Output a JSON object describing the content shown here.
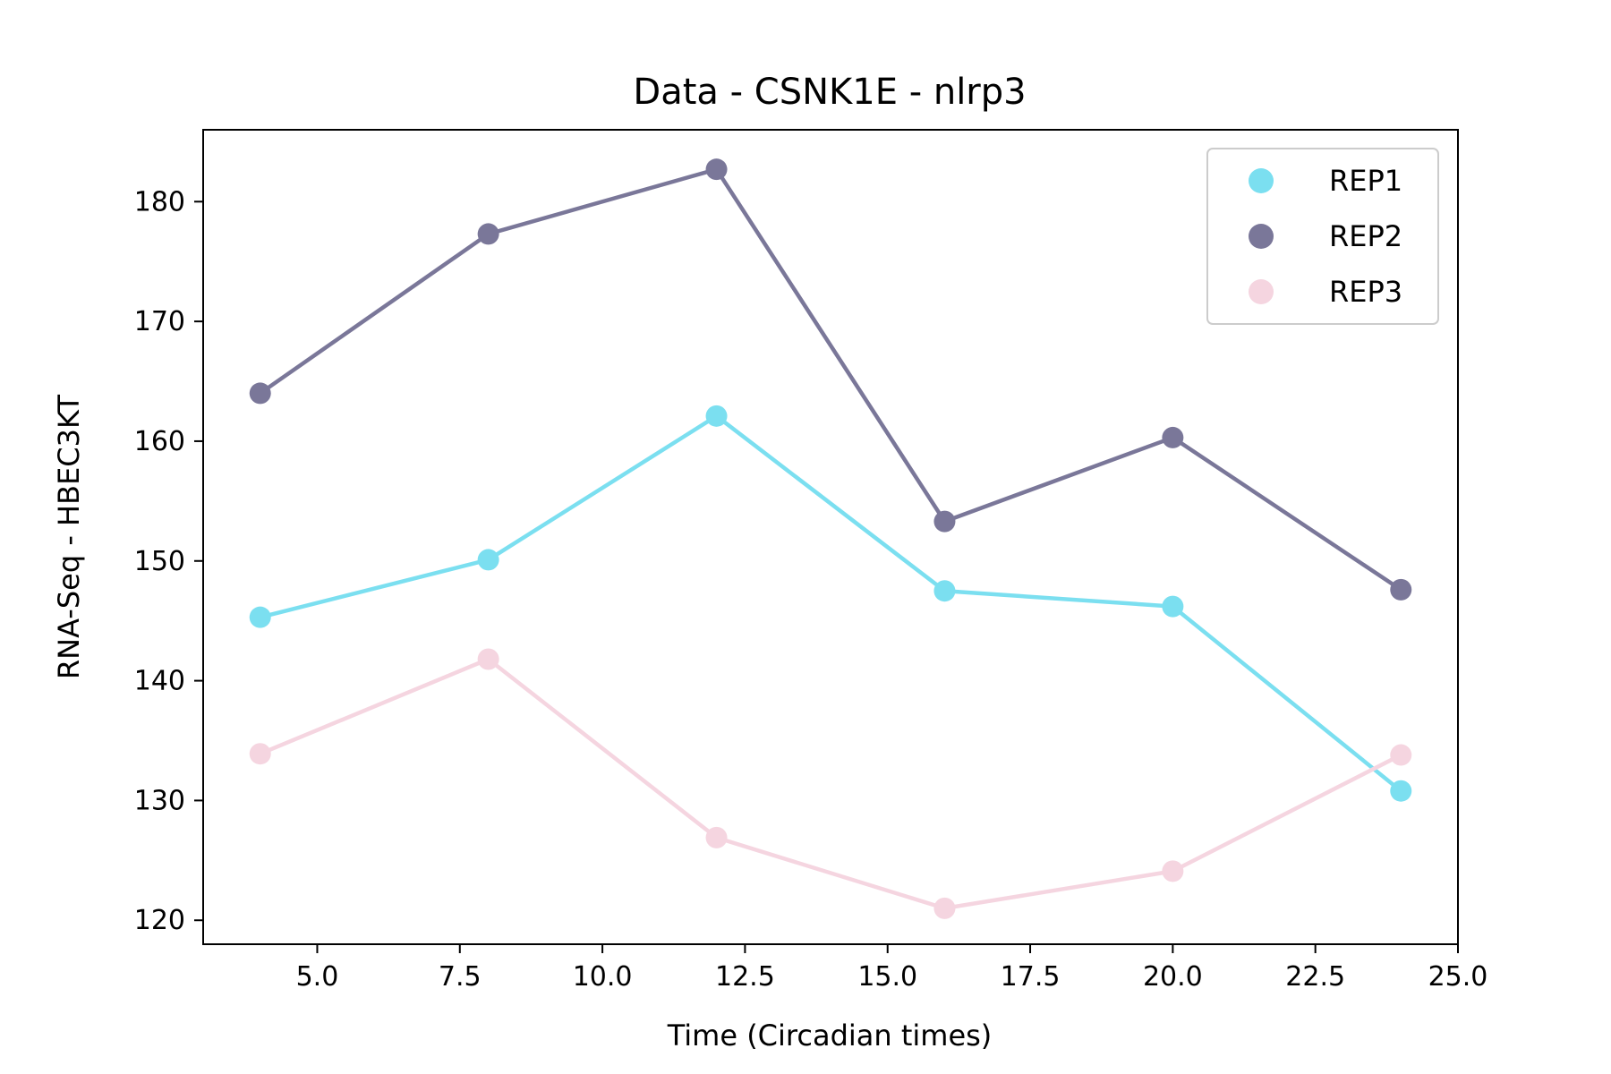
{
  "chart_data": {
    "type": "line",
    "title": "Data - CSNK1E - nlrp3",
    "xlabel": "Time (Circadian times)",
    "ylabel": "RNA-Seq - HBEC3KT",
    "xlim": [
      3,
      25
    ],
    "ylim": [
      118,
      186
    ],
    "xticks": [
      5.0,
      7.5,
      10.0,
      12.5,
      15.0,
      17.5,
      20.0,
      22.5,
      25.0
    ],
    "xtick_labels": [
      "5.0",
      "7.5",
      "10.0",
      "12.5",
      "15.0",
      "17.5",
      "20.0",
      "22.5",
      "25.0"
    ],
    "yticks": [
      120,
      130,
      140,
      150,
      160,
      170,
      180
    ],
    "ytick_labels": [
      "120",
      "130",
      "140",
      "150",
      "160",
      "170",
      "180"
    ],
    "grid": false,
    "legend": "top-right",
    "x": [
      4,
      8,
      12,
      16,
      20,
      24
    ],
    "series": [
      {
        "name": "REP1",
        "color": "#7bdff0",
        "values": [
          145.3,
          150.1,
          162.1,
          147.5,
          146.2,
          130.8
        ]
      },
      {
        "name": "REP2",
        "color": "#7a7799",
        "values": [
          164.0,
          177.3,
          182.7,
          153.3,
          160.3,
          147.6
        ]
      },
      {
        "name": "REP3",
        "color": "#f5d5e0",
        "values": [
          133.9,
          141.8,
          126.9,
          121.0,
          124.1,
          133.8
        ]
      }
    ]
  }
}
